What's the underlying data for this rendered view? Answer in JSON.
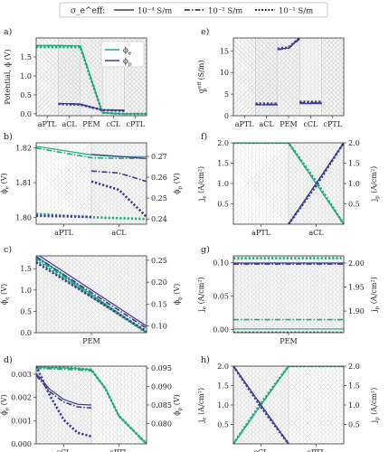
{
  "legend": {
    "title": "σ_e^eff:",
    "entries": [
      {
        "label": "10⁻⁴ S/m",
        "dash": "solid"
      },
      {
        "label": "10⁻² S/m",
        "dash": "dashdot"
      },
      {
        "label": "10⁻¹ S/m",
        "dash": "dotted"
      }
    ]
  },
  "colors": {
    "electron": "#1fa97f",
    "proton": "#3d3b8e",
    "grid": "#dcdcdc",
    "hatch": "#d8d8d8"
  },
  "chart_data": [
    {
      "id": "a",
      "panel_label": "a)",
      "type": "line",
      "ylabel": "Potential, ϕ (V)",
      "ylim": [
        -0.05,
        2.0
      ],
      "yticks": [
        0.0,
        0.5,
        1.0,
        1.5
      ],
      "xlim": [
        0,
        5
      ],
      "xticks": [
        {
          "pos": 0.5,
          "label": "aPTL"
        },
        {
          "pos": 1.5,
          "label": "aCL"
        },
        {
          "pos": 2.5,
          "label": "PEM"
        },
        {
          "pos": 3.5,
          "label": "cCL"
        },
        {
          "pos": 4.5,
          "label": "cPTL"
        }
      ],
      "legend": [
        {
          "label": "ϕ_e",
          "color": "electron"
        },
        {
          "label": "ϕ_p",
          "color": "proton"
        }
      ],
      "series": [
        {
          "color": "electron",
          "dash": "solid",
          "x": [
            0,
            1,
            2,
            2.5,
            3,
            3.5,
            4,
            5
          ],
          "y": [
            1.8,
            1.8,
            1.79,
            0.9,
            0.03,
            0.01,
            0.0,
            0.0
          ]
        },
        {
          "color": "electron",
          "dash": "dashdot",
          "x": [
            0,
            1,
            2,
            2.5,
            3,
            3.5,
            4,
            5
          ],
          "y": [
            1.8,
            1.8,
            1.79,
            0.9,
            0.03,
            0.01,
            0.0,
            0.0
          ]
        },
        {
          "color": "electron",
          "dash": "dotted",
          "x": [
            0,
            1,
            2,
            2.5,
            3,
            3.5,
            4,
            5
          ],
          "y": [
            1.76,
            1.76,
            1.76,
            0.88,
            0.03,
            0.01,
            0.0,
            0.0
          ]
        },
        {
          "color": "proton",
          "dash": "solid",
          "x": [
            1,
            1.5,
            2,
            2.5,
            3,
            3.5,
            4
          ],
          "y": [
            0.27,
            0.27,
            0.26,
            0.18,
            0.1,
            0.1,
            0.095
          ]
        },
        {
          "color": "proton",
          "dash": "dashdot",
          "x": [
            1,
            1.5,
            2,
            2.5,
            3,
            3.5,
            4
          ],
          "y": [
            0.27,
            0.265,
            0.25,
            0.17,
            0.1,
            0.095,
            0.09
          ]
        },
        {
          "color": "proton",
          "dash": "dotted",
          "x": [
            1,
            1.5,
            2,
            2.5,
            3,
            3.5,
            4
          ],
          "y": [
            0.26,
            0.25,
            0.24,
            0.17,
            0.1,
            0.09,
            0.08
          ]
        }
      ]
    },
    {
      "id": "e",
      "panel_label": "e)",
      "type": "line",
      "ylabel": "σ_p^eff (S/m)",
      "ylim": [
        0,
        18
      ],
      "yticks": [
        0,
        5,
        10,
        15
      ],
      "xlim": [
        0,
        5
      ],
      "xticks": [
        {
          "pos": 0.5,
          "label": "aPTL"
        },
        {
          "pos": 1.5,
          "label": "aCL"
        },
        {
          "pos": 2.5,
          "label": "PEM"
        },
        {
          "pos": 3.5,
          "label": "cCL"
        },
        {
          "pos": 4.5,
          "label": "cPTL"
        }
      ],
      "series": [
        {
          "color": "proton",
          "dash": "solid",
          "x": [
            1,
            2
          ],
          "y": [
            2.5,
            2.5
          ]
        },
        {
          "color": "proton",
          "dash": "dashdot",
          "x": [
            1,
            2
          ],
          "y": [
            2.6,
            2.6
          ]
        },
        {
          "color": "proton",
          "dash": "dotted",
          "x": [
            1,
            2
          ],
          "y": [
            2.8,
            2.8
          ]
        },
        {
          "color": "proton",
          "dash": "solid",
          "x": [
            2,
            2.5,
            3
          ],
          "y": [
            15.4,
            15.7,
            18
          ]
        },
        {
          "color": "proton",
          "dash": "dashdot",
          "x": [
            2,
            2.5,
            3
          ],
          "y": [
            15.3,
            15.6,
            17.8
          ]
        },
        {
          "color": "proton",
          "dash": "dotted",
          "x": [
            2,
            2.5,
            3
          ],
          "y": [
            15.5,
            15.8,
            18
          ]
        },
        {
          "color": "proton",
          "dash": "solid",
          "x": [
            3,
            4
          ],
          "y": [
            2.8,
            2.8
          ]
        },
        {
          "color": "proton",
          "dash": "dashdot",
          "x": [
            3,
            4
          ],
          "y": [
            3.0,
            3.0
          ]
        },
        {
          "color": "proton",
          "dash": "dotted",
          "x": [
            3,
            4
          ],
          "y": [
            3.2,
            3.2
          ]
        }
      ]
    },
    {
      "id": "b",
      "panel_label": "b)",
      "type": "line",
      "ylabel": "ϕ_e (V)",
      "ylim": [
        1.798,
        1.8215
      ],
      "yticks": [
        1.8,
        1.81,
        1.82
      ],
      "ylabel2": "ϕ_p (V)",
      "ylim2": [
        0.2375,
        0.2765
      ],
      "yticks2": [
        0.24,
        0.25,
        0.26,
        0.27
      ],
      "xlim": [
        0,
        2
      ],
      "xticks": [
        {
          "pos": 0.5,
          "label": "aPTL"
        },
        {
          "pos": 1.5,
          "label": "aCL"
        }
      ],
      "series": [
        {
          "color": "electron",
          "dash": "solid",
          "axis": "left",
          "x": [
            0,
            1,
            1.5,
            2
          ],
          "y": [
            1.8205,
            1.818,
            1.8175,
            1.8175
          ]
        },
        {
          "color": "electron",
          "dash": "dashdot",
          "axis": "left",
          "x": [
            0,
            1,
            1.5,
            2
          ],
          "y": [
            1.82,
            1.8172,
            1.817,
            1.817
          ]
        },
        {
          "color": "electron",
          "dash": "dotted",
          "axis": "left",
          "x": [
            0,
            1,
            2
          ],
          "y": [
            1.801,
            1.8,
            1.7995
          ]
        },
        {
          "color": "proton",
          "dash": "solid",
          "axis": "right",
          "x": [
            1,
            1.5,
            2
          ],
          "y": [
            0.271,
            0.27,
            0.269
          ]
        },
        {
          "color": "proton",
          "dash": "dashdot",
          "axis": "right",
          "x": [
            1,
            1.5,
            2
          ],
          "y": [
            0.263,
            0.262,
            0.258
          ]
        },
        {
          "color": "proton",
          "dash": "dotted",
          "axis": "right",
          "x": [
            1,
            1.5,
            2
          ],
          "y": [
            0.258,
            0.254,
            0.241
          ]
        },
        {
          "color": "proton",
          "dash": "dotted",
          "axis": "right",
          "x": [
            0,
            1
          ],
          "y": [
            0.2415,
            0.241
          ]
        }
      ]
    },
    {
      "id": "f",
      "panel_label": "f)",
      "type": "line",
      "ylabel": "j_e (A/cm²)",
      "ylim": [
        0,
        2.0
      ],
      "yticks": [
        0.5,
        1.0,
        1.5,
        2.0
      ],
      "ylabel2": "j_p (A/cm²)",
      "ylim2": [
        0,
        2.0
      ],
      "yticks2": [
        0.5,
        1.0,
        1.5,
        2.0
      ],
      "xlim": [
        0,
        2
      ],
      "xticks": [
        {
          "pos": 0.5,
          "label": "aPTL"
        },
        {
          "pos": 1.5,
          "label": "aCL"
        }
      ],
      "series": [
        {
          "color": "electron",
          "dash": "solid",
          "axis": "left",
          "x": [
            0,
            1,
            1.5,
            2
          ],
          "y": [
            2.0,
            2.0,
            1.0,
            0.0
          ]
        },
        {
          "color": "electron",
          "dash": "dashdot",
          "axis": "left",
          "x": [
            0,
            1,
            1.5,
            2
          ],
          "y": [
            2.0,
            2.0,
            1.0,
            0.0
          ]
        },
        {
          "color": "electron",
          "dash": "dotted",
          "axis": "left",
          "x": [
            0,
            1,
            1.5,
            2
          ],
          "y": [
            2.0,
            2.0,
            1.05,
            0.0
          ]
        },
        {
          "color": "proton",
          "dash": "solid",
          "axis": "right",
          "x": [
            1,
            1.5,
            2
          ],
          "y": [
            0.0,
            1.0,
            2.0
          ]
        },
        {
          "color": "proton",
          "dash": "dashdot",
          "axis": "right",
          "x": [
            1,
            1.5,
            2
          ],
          "y": [
            0.0,
            1.0,
            2.0
          ]
        },
        {
          "color": "proton",
          "dash": "dotted",
          "axis": "right",
          "x": [
            1,
            1.5,
            2
          ],
          "y": [
            0.0,
            0.95,
            2.0
          ]
        }
      ]
    },
    {
      "id": "c",
      "panel_label": "c)",
      "type": "line",
      "ylabel": "ϕ_e (V)",
      "ylim": [
        0,
        1.8
      ],
      "yticks": [
        0.0,
        0.5,
        1.0,
        1.5
      ],
      "ylabel2": "ϕ_p (V)",
      "ylim2": [
        0.085,
        0.26
      ],
      "yticks2": [
        0.1,
        0.15,
        0.2,
        0.25
      ],
      "xlim": [
        0,
        1
      ],
      "xticks": [
        {
          "pos": 0.5,
          "label": "PEM"
        }
      ],
      "series": [
        {
          "color": "electron",
          "dash": "solid",
          "axis": "left",
          "x": [
            0,
            1
          ],
          "y": [
            1.79,
            0.01
          ]
        },
        {
          "color": "electron",
          "dash": "dashdot",
          "axis": "left",
          "x": [
            0,
            1
          ],
          "y": [
            1.75,
            0.0
          ]
        },
        {
          "color": "electron",
          "dash": "dotted",
          "axis": "left",
          "x": [
            0,
            1
          ],
          "y": [
            1.7,
            0.0
          ]
        },
        {
          "color": "proton",
          "dash": "solid",
          "axis": "right",
          "x": [
            0,
            1
          ],
          "y": [
            0.265,
            0.1
          ]
        },
        {
          "color": "proton",
          "dash": "dashdot",
          "axis": "right",
          "x": [
            0,
            1
          ],
          "y": [
            0.258,
            0.095
          ]
        },
        {
          "color": "proton",
          "dash": "dotted",
          "axis": "right",
          "x": [
            0,
            1
          ],
          "y": [
            0.245,
            0.088
          ]
        }
      ]
    },
    {
      "id": "g",
      "panel_label": "g)",
      "type": "line",
      "ylabel": "j_e (A/cm²)",
      "ylim": [
        -0.005,
        0.11
      ],
      "yticks": [
        0.0,
        0.05,
        0.1
      ],
      "ylabel2": "j_p (A/cm²)",
      "ylim2": [
        1.855,
        2.015
      ],
      "yticks2": [
        1.9,
        1.95,
        2.0
      ],
      "xlim": [
        0,
        1
      ],
      "xticks": [
        {
          "pos": 0.5,
          "label": "PEM"
        }
      ],
      "series": [
        {
          "color": "electron",
          "dash": "solid",
          "axis": "left",
          "x": [
            0,
            1
          ],
          "y": [
            0.0005,
            0.0005
          ]
        },
        {
          "color": "electron",
          "dash": "dashdot",
          "axis": "left",
          "x": [
            0,
            1
          ],
          "y": [
            0.0145,
            0.0145
          ]
        },
        {
          "color": "electron",
          "dash": "dotted",
          "axis": "left",
          "x": [
            0,
            1
          ],
          "y": [
            0.1065,
            0.1065
          ]
        },
        {
          "color": "proton",
          "dash": "solid",
          "axis": "right",
          "x": [
            0,
            1
          ],
          "y": [
            2.0,
            2.0
          ]
        },
        {
          "color": "proton",
          "dash": "dashdot",
          "axis": "right",
          "x": [
            0,
            1
          ],
          "y": [
            1.998,
            1.998
          ]
        },
        {
          "color": "proton",
          "dash": "dotted",
          "axis": "right",
          "x": [
            0,
            1
          ],
          "y": [
            1.855,
            1.855
          ]
        }
      ]
    },
    {
      "id": "d",
      "panel_label": "d)",
      "type": "line",
      "ylabel": "ϕ_e (V)",
      "ylim": [
        0,
        0.00335
      ],
      "yticks": [
        0.0,
        0.001,
        0.002,
        0.003
      ],
      "ylabel2": "ϕ_p (V)",
      "ylim2": [
        0.0745,
        0.0955
      ],
      "yticks2": [
        0.08,
        0.085,
        0.09,
        0.095
      ],
      "xlim": [
        0,
        2
      ],
      "xticks": [
        {
          "pos": 0.5,
          "label": "cCL"
        },
        {
          "pos": 1.5,
          "label": "cPTL"
        }
      ],
      "series": [
        {
          "color": "electron",
          "dash": "solid",
          "axis": "left",
          "x": [
            0,
            0.5,
            1,
            1.25,
            1.5,
            2
          ],
          "y": [
            0.0033,
            0.00328,
            0.0032,
            0.0024,
            0.0012,
            0.0
          ]
        },
        {
          "color": "electron",
          "dash": "dashdot",
          "axis": "left",
          "x": [
            0,
            0.5,
            1,
            1.25,
            1.5,
            2
          ],
          "y": [
            0.00325,
            0.00322,
            0.00315,
            0.0024,
            0.0012,
            0.0
          ]
        },
        {
          "color": "electron",
          "dash": "dotted",
          "axis": "left",
          "x": [
            0,
            0.5,
            1,
            1.25,
            1.5,
            2
          ],
          "y": [
            0.0033,
            0.0033,
            0.0032,
            0.0024,
            0.0012,
            0.0
          ]
        },
        {
          "color": "proton",
          "dash": "solid",
          "axis": "right",
          "x": [
            0,
            0.25,
            0.5,
            0.75,
            1
          ],
          "y": [
            0.0935,
            0.0892,
            0.0865,
            0.0852,
            0.085
          ]
        },
        {
          "color": "proton",
          "dash": "dashdot",
          "axis": "right",
          "x": [
            0,
            0.25,
            0.5,
            0.75,
            1
          ],
          "y": [
            0.093,
            0.0885,
            0.0858,
            0.0845,
            0.0842
          ]
        },
        {
          "color": "proton",
          "dash": "dotted",
          "axis": "right",
          "x": [
            0,
            0.25,
            0.5,
            0.75,
            1
          ],
          "y": [
            0.0955,
            0.0875,
            0.081,
            0.0775,
            0.0765
          ]
        }
      ]
    },
    {
      "id": "h",
      "panel_label": "h)",
      "type": "line",
      "ylabel": "j_e (A/cm²)",
      "ylim": [
        0,
        2.0
      ],
      "yticks": [
        0.5,
        1.0,
        1.5,
        2.0
      ],
      "ylabel2": "j_p (A/cm²)",
      "ylim2": [
        0,
        2.0
      ],
      "yticks2": [
        0.5,
        1.0,
        1.5,
        2.0
      ],
      "xlim": [
        0,
        2
      ],
      "xticks": [
        {
          "pos": 0.5,
          "label": "cCL"
        },
        {
          "pos": 1.5,
          "label": "cPTL"
        }
      ],
      "series": [
        {
          "color": "electron",
          "dash": "solid",
          "axis": "left",
          "x": [
            0,
            0.5,
            1,
            2
          ],
          "y": [
            0.0,
            1.0,
            2.0,
            2.0
          ]
        },
        {
          "color": "electron",
          "dash": "dashdot",
          "axis": "left",
          "x": [
            0,
            0.5,
            1,
            2
          ],
          "y": [
            0.0,
            1.0,
            2.0,
            2.0
          ]
        },
        {
          "color": "electron",
          "dash": "dotted",
          "axis": "left",
          "x": [
            0,
            0.5,
            1,
            2
          ],
          "y": [
            0.0,
            1.05,
            2.0,
            2.0
          ]
        },
        {
          "color": "proton",
          "dash": "solid",
          "axis": "right",
          "x": [
            0,
            0.5,
            1
          ],
          "y": [
            2.0,
            1.0,
            0.0
          ]
        },
        {
          "color": "proton",
          "dash": "dashdot",
          "axis": "right",
          "x": [
            0,
            0.5,
            1
          ],
          "y": [
            2.0,
            1.0,
            0.0
          ]
        },
        {
          "color": "proton",
          "dash": "dotted",
          "axis": "right",
          "x": [
            0,
            0.5,
            1
          ],
          "y": [
            2.0,
            0.95,
            0.0
          ]
        }
      ]
    }
  ]
}
